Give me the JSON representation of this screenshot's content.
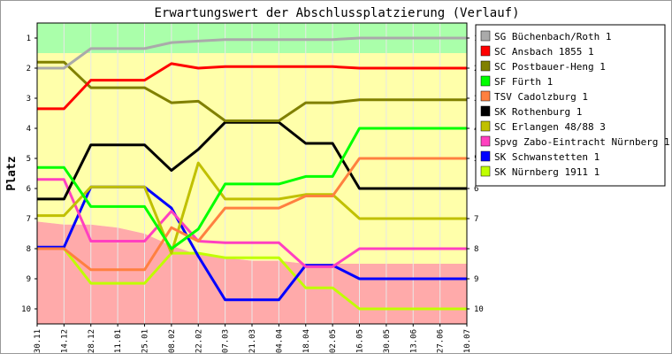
{
  "chart_data": {
    "type": "line",
    "title": "Erwartungswert der Abschlussplatzierung (Verlauf)",
    "ylabel": "Platz",
    "ylim": [
      10.5,
      0.5
    ],
    "yticks": [
      1,
      2,
      3,
      4,
      5,
      6,
      7,
      8,
      9,
      10
    ],
    "categories": [
      "30.11",
      "14.12",
      "28.12",
      "11.01",
      "25.01",
      "08.02",
      "22.02",
      "07.03",
      "21.03",
      "04.04",
      "18.04",
      "02.05",
      "16.05",
      "30.05",
      "13.06",
      "27.06",
      "10.07"
    ],
    "zones": [
      {
        "name": "green",
        "color": "#aaffaa",
        "from": [
          0.5,
          0.5,
          0.5,
          0.5,
          0.5,
          0.5,
          0.5,
          0.5,
          0.5,
          0.5,
          0.5,
          0.5,
          0.5,
          0.5,
          0.5,
          0.5,
          0.5
        ],
        "to": [
          1.5,
          1.5,
          1.5,
          1.5,
          1.5,
          1.5,
          1.5,
          1.5,
          1.5,
          1.5,
          1.5,
          1.5,
          1.5,
          1.5,
          1.5,
          1.5,
          1.5
        ]
      },
      {
        "name": "yellow",
        "color": "#ffffaa",
        "from": [
          1.5,
          1.5,
          1.5,
          1.5,
          1.5,
          1.5,
          1.5,
          1.5,
          1.5,
          1.5,
          1.5,
          1.5,
          1.5,
          1.5,
          1.5,
          1.5,
          1.5
        ],
        "to": [
          7.1,
          7.2,
          7.2,
          7.3,
          7.5,
          7.9,
          8.2,
          8.3,
          8.4,
          8.4,
          8.5,
          8.5,
          8.5,
          8.5,
          8.5,
          8.5,
          8.5
        ]
      },
      {
        "name": "red",
        "color": "#ffaaaa",
        "from": [
          7.1,
          7.2,
          7.2,
          7.3,
          7.5,
          7.9,
          8.2,
          8.3,
          8.4,
          8.4,
          8.5,
          8.5,
          8.5,
          8.5,
          8.5,
          8.5,
          8.5
        ],
        "to": [
          10.5,
          10.5,
          10.5,
          10.5,
          10.5,
          10.5,
          10.5,
          10.5,
          10.5,
          10.5,
          10.5,
          10.5,
          10.5,
          10.5,
          10.5,
          10.5,
          10.5
        ]
      }
    ],
    "series": [
      {
        "name": "SG Büchenbach/Roth 1",
        "color": "#aaaaaa",
        "values": [
          2.0,
          2.0,
          1.35,
          1.35,
          1.35,
          1.15,
          1.1,
          1.05,
          1.05,
          1.05,
          1.05,
          1.05,
          1.0,
          1.0,
          1.0,
          1.0,
          1.0
        ]
      },
      {
        "name": "SC Ansbach 1855 1",
        "color": "#ff0000",
        "values": [
          3.35,
          3.35,
          2.4,
          2.4,
          2.4,
          1.85,
          2.0,
          1.95,
          1.95,
          1.95,
          1.95,
          1.95,
          2.0,
          2.0,
          2.0,
          2.0,
          2.0
        ]
      },
      {
        "name": "SC Postbauer-Heng 1",
        "color": "#808000",
        "values": [
          1.8,
          1.8,
          2.65,
          2.65,
          2.65,
          3.15,
          3.1,
          3.75,
          3.75,
          3.75,
          3.15,
          3.15,
          3.05,
          3.05,
          3.05,
          3.05,
          3.05
        ]
      },
      {
        "name": "SF Fürth 1",
        "color": "#00ff00",
        "values": [
          5.3,
          5.3,
          6.6,
          6.6,
          6.6,
          8.0,
          7.35,
          5.85,
          5.85,
          5.85,
          5.6,
          5.6,
          4.0,
          4.0,
          4.0,
          4.0,
          4.0
        ]
      },
      {
        "name": "TSV Cadolzburg 1",
        "color": "#ff8040",
        "values": [
          8.0,
          8.0,
          8.7,
          8.7,
          8.7,
          7.3,
          7.75,
          6.65,
          6.65,
          6.65,
          6.25,
          6.25,
          5.0,
          5.0,
          5.0,
          5.0,
          5.0
        ]
      },
      {
        "name": "SK Rothenburg 1",
        "color": "#000000",
        "values": [
          6.35,
          6.35,
          4.55,
          4.55,
          4.55,
          5.4,
          4.7,
          3.8,
          3.8,
          3.8,
          4.5,
          4.5,
          6.0,
          6.0,
          6.0,
          6.0,
          6.0
        ]
      },
      {
        "name": "SC Erlangen 48/88 3",
        "color": "#c0c000",
        "values": [
          6.9,
          6.9,
          5.95,
          5.95,
          5.95,
          8.15,
          5.15,
          6.35,
          6.35,
          6.35,
          6.2,
          6.2,
          7.0,
          7.0,
          7.0,
          7.0,
          7.0
        ]
      },
      {
        "name": "Spvg Zabo-Eintracht Nürnberg 1",
        "color": "#ff40c0",
        "values": [
          5.7,
          5.7,
          7.75,
          7.75,
          7.75,
          6.75,
          7.75,
          7.8,
          7.8,
          7.8,
          8.6,
          8.6,
          8.0,
          8.0,
          8.0,
          8.0,
          8.0
        ]
      },
      {
        "name": "SK Schwanstetten 1",
        "color": "#0000ff",
        "values": [
          7.95,
          7.95,
          5.95,
          5.95,
          5.95,
          6.65,
          8.25,
          9.7,
          9.7,
          9.7,
          8.55,
          8.55,
          9.0,
          9.0,
          9.0,
          9.0,
          9.0
        ]
      },
      {
        "name": "SK Nürnberg 1911 1",
        "color": "#c0ff00",
        "values": [
          8.0,
          8.0,
          9.15,
          9.15,
          9.15,
          8.15,
          8.15,
          8.3,
          8.3,
          8.3,
          9.3,
          9.3,
          10.0,
          10.0,
          10.0,
          10.0,
          10.0
        ]
      }
    ],
    "legend": "right"
  }
}
